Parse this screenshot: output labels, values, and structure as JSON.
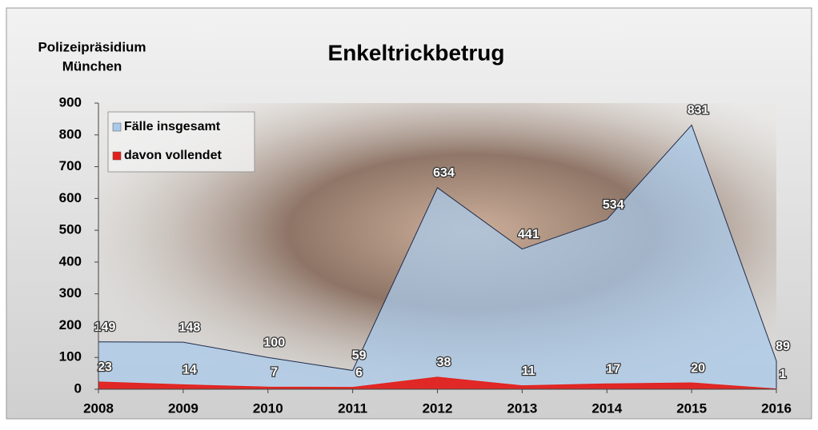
{
  "chart_data": {
    "type": "area",
    "title": "Enkeltrickbetrug",
    "subtitle": [
      "Polizeipräsidium",
      "München"
    ],
    "x": [
      2008,
      2009,
      2010,
      2011,
      2012,
      2013,
      2014,
      2015,
      2016
    ],
    "series": [
      {
        "name": "Fälle insgesamt",
        "color": "#a9c9e9",
        "values": [
          149,
          148,
          100,
          59,
          634,
          441,
          534,
          831,
          89
        ]
      },
      {
        "name": "davon vollendet",
        "color": "#e3201b",
        "values": [
          23,
          14,
          7,
          6,
          38,
          11,
          17,
          20,
          1
        ]
      }
    ],
    "xlim": [
      2008,
      2016
    ],
    "xticks": [
      2008,
      2009,
      2010,
      2011,
      2012,
      2013,
      2014,
      2015,
      2016
    ],
    "ylim": [
      0,
      900
    ],
    "yticks": [
      0,
      100,
      200,
      300,
      400,
      500,
      600,
      700,
      800,
      900
    ],
    "legend": "upper left"
  }
}
